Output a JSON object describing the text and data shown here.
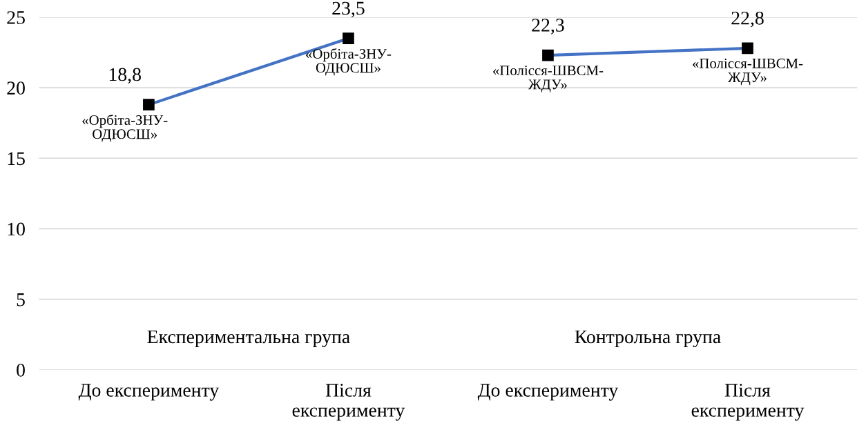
{
  "chart_data": {
    "type": "line",
    "categories": [
      "До експерименту",
      "Після\nексперименту",
      "До експерименту",
      "Після\nексперименту"
    ],
    "series": [
      {
        "color": "#4472c4",
        "values": [
          18.8,
          23.5,
          null,
          null
        ],
        "value_labels": [
          "18,8",
          "23,5",
          null,
          null
        ]
      },
      {
        "color": "#4472c4",
        "values": [
          null,
          null,
          22.3,
          22.8
        ],
        "value_labels": [
          null,
          null,
          "22,3",
          "22,8"
        ]
      }
    ],
    "ylim": [
      0,
      25
    ],
    "yticks": [
      0,
      5,
      10,
      15,
      20,
      25
    ],
    "grid": "y",
    "marker": "square",
    "line_style": "solid",
    "legend": false,
    "annotations": [
      "Експериментальна група",
      "Контрольна група",
      "«Орбіта-ЗНУ-\nОДЮСШ»",
      "«Орбіта-ЗНУ-\nОДЮСШ»",
      "«Полісся-ШВСМ-\nЖДУ»",
      "«Полісся-ШВСМ-\nЖДУ»"
    ]
  }
}
